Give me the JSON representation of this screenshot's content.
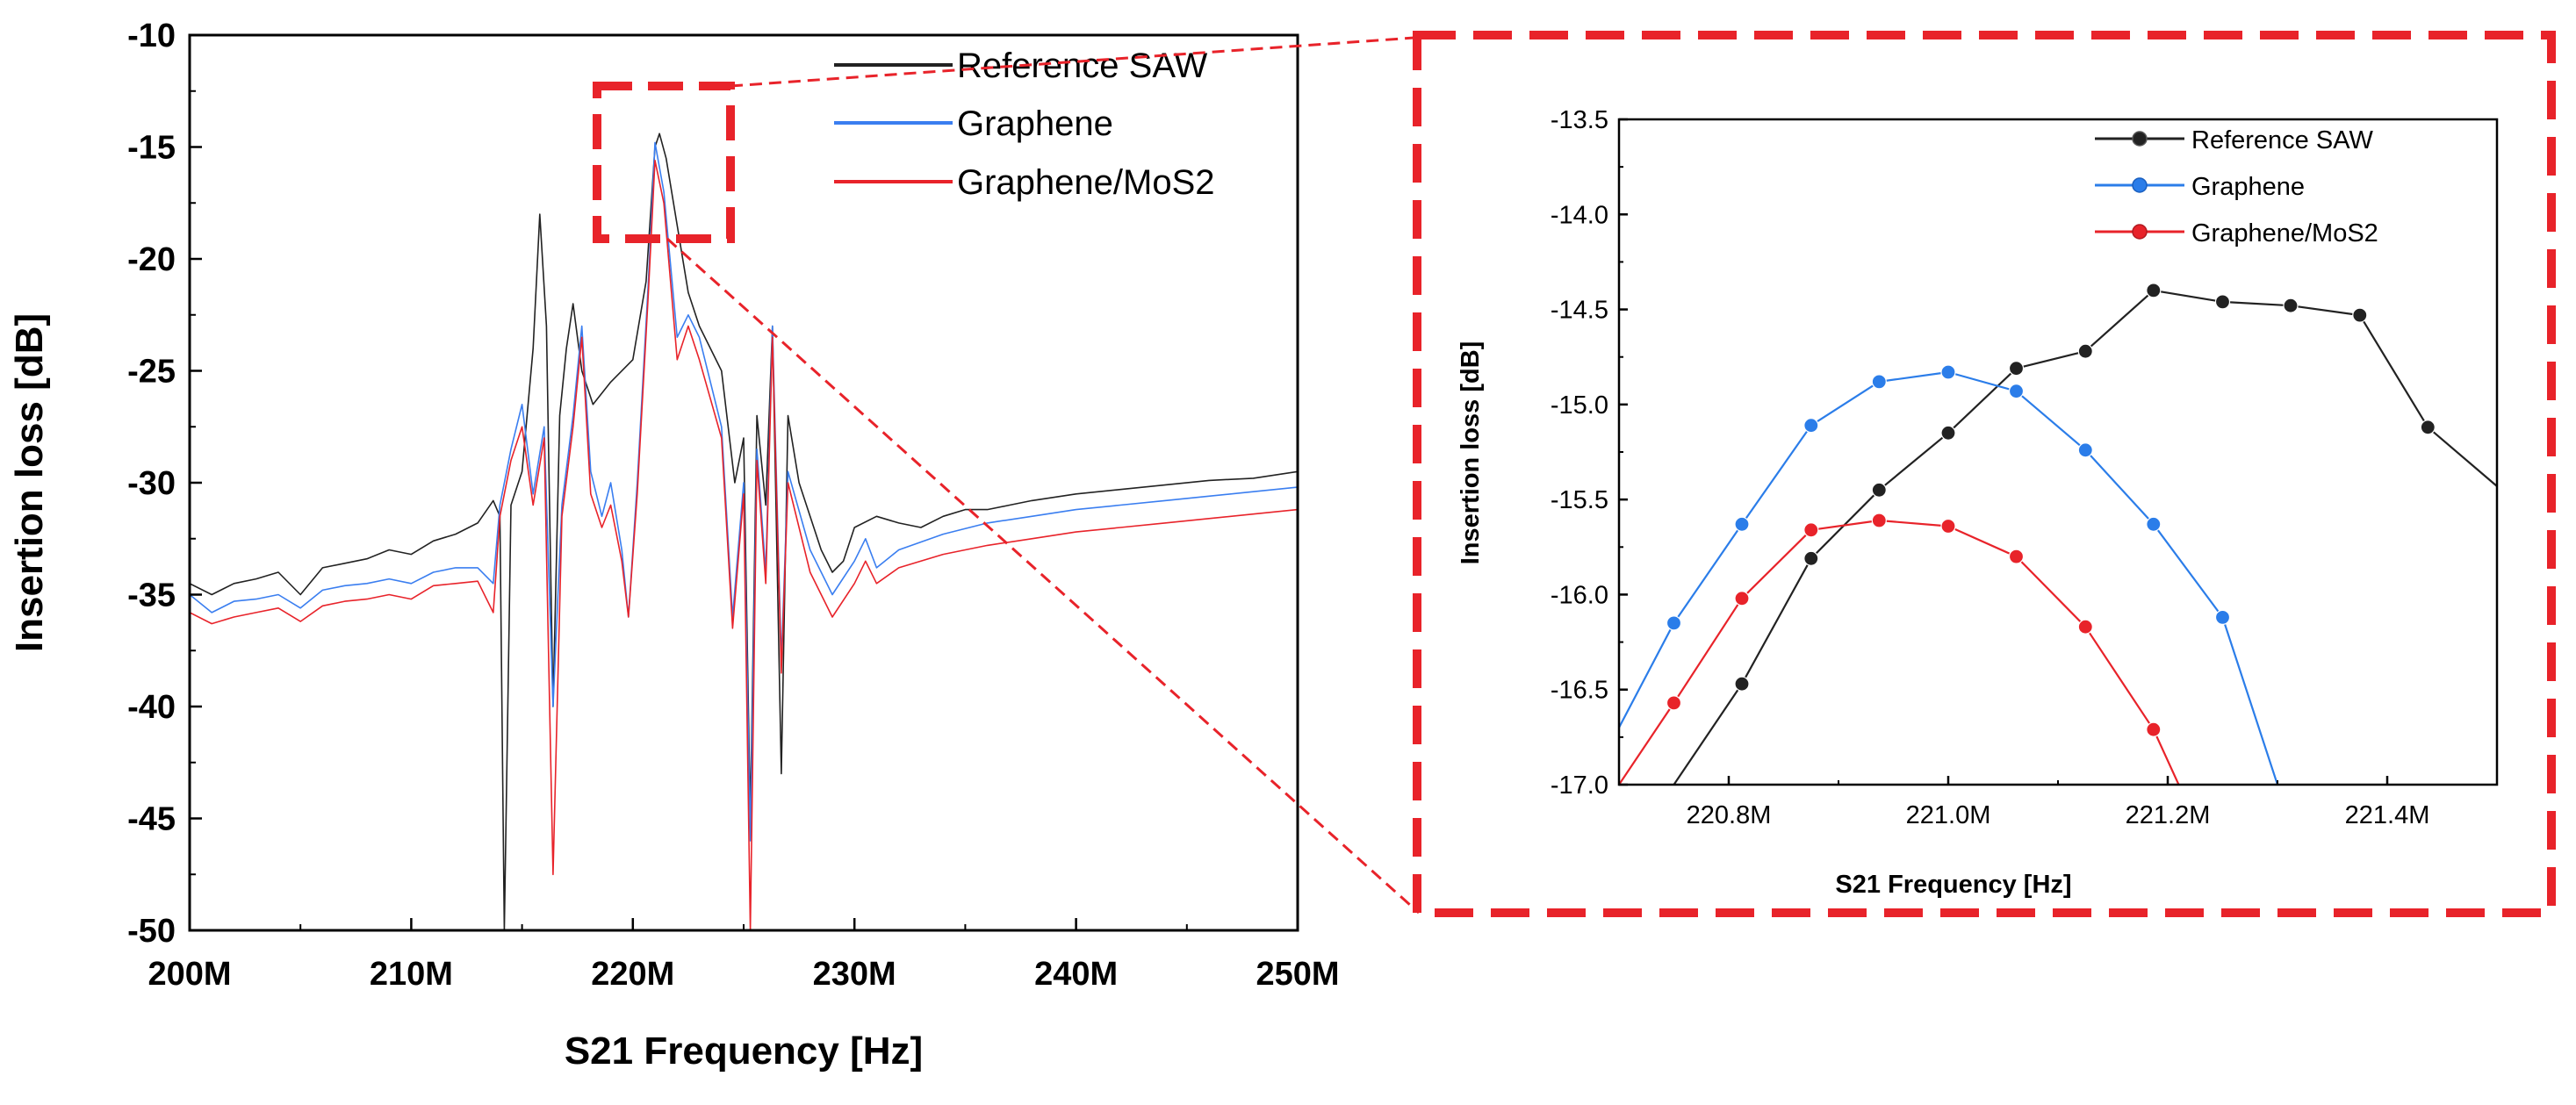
{
  "chart_data": [
    {
      "id": "main",
      "type": "line",
      "title": "",
      "xlabel": "S21 Frequency [Hz]",
      "ylabel": "Insertion loss [dB]",
      "xlim": [
        200,
        250
      ],
      "ylim": [
        -50,
        -10
      ],
      "x_unit": "MHz",
      "x_ticks": [
        200,
        210,
        220,
        230,
        240,
        250
      ],
      "x_tick_labels": [
        "200M",
        "210M",
        "220M",
        "230M",
        "240M",
        "250M"
      ],
      "y_ticks": [
        -50,
        -45,
        -40,
        -35,
        -30,
        -25,
        -20,
        -15,
        -10
      ],
      "y_tick_labels": [
        "-50",
        "-45",
        "-40",
        "-35",
        "-30",
        "-25",
        "-20",
        "-15",
        "-10"
      ],
      "legend_position": "top-right",
      "series": [
        {
          "name": "Reference SAW",
          "color": "#222222",
          "points": [
            [
              200,
              -34.5
            ],
            [
              201,
              -35.0
            ],
            [
              202,
              -34.5
            ],
            [
              203,
              -34.3
            ],
            [
              204,
              -34.0
            ],
            [
              205,
              -35.0
            ],
            [
              206,
              -33.8
            ],
            [
              207,
              -33.6
            ],
            [
              208,
              -33.4
            ],
            [
              209,
              -33.0
            ],
            [
              210,
              -33.2
            ],
            [
              211,
              -32.6
            ],
            [
              212,
              -32.3
            ],
            [
              213,
              -31.8
            ],
            [
              213.7,
              -30.8
            ],
            [
              214,
              -31.5
            ],
            [
              214.2,
              -50.0
            ],
            [
              214.5,
              -31.0
            ],
            [
              215,
              -29.5
            ],
            [
              215.5,
              -24.0
            ],
            [
              215.8,
              -18.0
            ],
            [
              216.1,
              -23.0
            ],
            [
              216.4,
              -40.0
            ],
            [
              216.7,
              -27.0
            ],
            [
              217,
              -24.0
            ],
            [
              217.3,
              -22.0
            ],
            [
              217.7,
              -25.0
            ],
            [
              218.2,
              -26.5
            ],
            [
              219,
              -25.5
            ],
            [
              220,
              -24.5
            ],
            [
              220.6,
              -21.0
            ],
            [
              221.0,
              -15.0
            ],
            [
              221.2,
              -14.4
            ],
            [
              221.5,
              -15.5
            ],
            [
              222,
              -18.5
            ],
            [
              222.5,
              -21.5
            ],
            [
              223,
              -23.0
            ],
            [
              224,
              -25.0
            ],
            [
              224.6,
              -30.0
            ],
            [
              225.0,
              -28.0
            ],
            [
              225.3,
              -45.0
            ],
            [
              225.6,
              -27.0
            ],
            [
              226.0,
              -31.0
            ],
            [
              226.3,
              -23.0
            ],
            [
              226.7,
              -43.0
            ],
            [
              227,
              -27.0
            ],
            [
              227.5,
              -30.0
            ],
            [
              228,
              -31.5
            ],
            [
              228.5,
              -33.0
            ],
            [
              229,
              -34.0
            ],
            [
              229.5,
              -33.5
            ],
            [
              230,
              -32.0
            ],
            [
              231,
              -31.5
            ],
            [
              232,
              -31.8
            ],
            [
              233,
              -32.0
            ],
            [
              234,
              -31.5
            ],
            [
              235,
              -31.2
            ],
            [
              236,
              -31.2
            ],
            [
              237,
              -31.0
            ],
            [
              238,
              -30.8
            ],
            [
              240,
              -30.5
            ],
            [
              242,
              -30.3
            ],
            [
              244,
              -30.1
            ],
            [
              246,
              -29.9
            ],
            [
              248,
              -29.8
            ],
            [
              250,
              -29.5
            ]
          ]
        },
        {
          "name": "Graphene",
          "color": "#3a7ef0",
          "points": [
            [
              200,
              -35.0
            ],
            [
              201,
              -35.8
            ],
            [
              202,
              -35.3
            ],
            [
              203,
              -35.2
            ],
            [
              204,
              -35.0
            ],
            [
              205,
              -35.6
            ],
            [
              206,
              -34.8
            ],
            [
              207,
              -34.6
            ],
            [
              208,
              -34.5
            ],
            [
              209,
              -34.3
            ],
            [
              210,
              -34.5
            ],
            [
              211,
              -34.0
            ],
            [
              212,
              -33.8
            ],
            [
              213,
              -33.8
            ],
            [
              213.7,
              -34.5
            ],
            [
              214,
              -31.0
            ],
            [
              214.5,
              -28.5
            ],
            [
              215,
              -26.5
            ],
            [
              215.5,
              -30.5
            ],
            [
              216.0,
              -27.5
            ],
            [
              216.4,
              -40.0
            ],
            [
              216.8,
              -31.0
            ],
            [
              217.3,
              -27.0
            ],
            [
              217.7,
              -23.0
            ],
            [
              218.1,
              -29.5
            ],
            [
              218.6,
              -31.5
            ],
            [
              219.0,
              -30.0
            ],
            [
              219.5,
              -33.0
            ],
            [
              219.8,
              -36.0
            ],
            [
              220.2,
              -30.0
            ],
            [
              220.7,
              -21.0
            ],
            [
              221.0,
              -14.8
            ],
            [
              221.4,
              -17.0
            ],
            [
              222.0,
              -23.5
            ],
            [
              222.5,
              -22.5
            ],
            [
              223,
              -23.5
            ],
            [
              224,
              -27.5
            ],
            [
              224.5,
              -36.0
            ],
            [
              225.0,
              -30.0
            ],
            [
              225.3,
              -46.0
            ],
            [
              225.6,
              -28.5
            ],
            [
              226.0,
              -34.0
            ],
            [
              226.3,
              -23.0
            ],
            [
              226.7,
              -38.0
            ],
            [
              227,
              -29.5
            ],
            [
              228,
              -33.0
            ],
            [
              229,
              -35.0
            ],
            [
              230,
              -33.5
            ],
            [
              230.5,
              -32.5
            ],
            [
              231,
              -33.8
            ],
            [
              232,
              -33.0
            ],
            [
              234,
              -32.3
            ],
            [
              236,
              -31.8
            ],
            [
              238,
              -31.5
            ],
            [
              240,
              -31.2
            ],
            [
              242,
              -31.0
            ],
            [
              244,
              -30.8
            ],
            [
              246,
              -30.6
            ],
            [
              248,
              -30.4
            ],
            [
              250,
              -30.2
            ]
          ]
        },
        {
          "name": "Graphene/MoS2",
          "color": "#e8232a",
          "points": [
            [
              200,
              -35.8
            ],
            [
              201,
              -36.3
            ],
            [
              202,
              -36.0
            ],
            [
              203,
              -35.8
            ],
            [
              204,
              -35.6
            ],
            [
              205,
              -36.2
            ],
            [
              206,
              -35.5
            ],
            [
              207,
              -35.3
            ],
            [
              208,
              -35.2
            ],
            [
              209,
              -35.0
            ],
            [
              210,
              -35.2
            ],
            [
              211,
              -34.6
            ],
            [
              212,
              -34.5
            ],
            [
              213,
              -34.4
            ],
            [
              213.7,
              -35.8
            ],
            [
              214,
              -31.5
            ],
            [
              214.5,
              -29.0
            ],
            [
              215,
              -27.5
            ],
            [
              215.5,
              -31.0
            ],
            [
              216.0,
              -28.0
            ],
            [
              216.4,
              -47.5
            ],
            [
              216.8,
              -31.5
            ],
            [
              217.3,
              -27.5
            ],
            [
              217.7,
              -23.5
            ],
            [
              218.1,
              -30.5
            ],
            [
              218.6,
              -32.0
            ],
            [
              219.0,
              -31.0
            ],
            [
              219.5,
              -33.5
            ],
            [
              219.8,
              -36.0
            ],
            [
              220.2,
              -30.5
            ],
            [
              220.7,
              -21.5
            ],
            [
              221.0,
              -15.6
            ],
            [
              221.4,
              -17.5
            ],
            [
              222.0,
              -24.5
            ],
            [
              222.5,
              -23.0
            ],
            [
              223,
              -24.5
            ],
            [
              224,
              -28.0
            ],
            [
              224.5,
              -36.5
            ],
            [
              225.0,
              -30.5
            ],
            [
              225.3,
              -50.0
            ],
            [
              225.6,
              -29.0
            ],
            [
              226.0,
              -34.5
            ],
            [
              226.3,
              -23.5
            ],
            [
              226.7,
              -38.5
            ],
            [
              227,
              -30.0
            ],
            [
              228,
              -34.0
            ],
            [
              229,
              -36.0
            ],
            [
              230,
              -34.5
            ],
            [
              230.5,
              -33.5
            ],
            [
              231,
              -34.5
            ],
            [
              232,
              -33.8
            ],
            [
              234,
              -33.2
            ],
            [
              236,
              -32.8
            ],
            [
              238,
              -32.5
            ],
            [
              240,
              -32.2
            ],
            [
              242,
              -32.0
            ],
            [
              244,
              -31.8
            ],
            [
              246,
              -31.6
            ],
            [
              248,
              -31.4
            ],
            [
              250,
              -31.2
            ]
          ]
        }
      ]
    },
    {
      "id": "zoom",
      "type": "line",
      "title": "",
      "xlabel": "S21 Frequency [Hz]",
      "ylabel": "Insertion loss [dB]",
      "xlim": [
        220.7,
        221.5
      ],
      "ylim": [
        -17.0,
        -13.5
      ],
      "x_unit": "MHz",
      "x_ticks": [
        220.8,
        221.0,
        221.2,
        221.4
      ],
      "x_tick_labels": [
        "220.8M",
        "221.0M",
        "221.2M",
        "221.4M"
      ],
      "y_ticks": [
        -17.0,
        -16.5,
        -16.0,
        -15.5,
        -15.0,
        -14.5,
        -14.0,
        -13.5
      ],
      "y_tick_labels": [
        "-17.0",
        "-16.5",
        "-16.0",
        "-15.5",
        "-15.0",
        "-14.5",
        "-14.0",
        "-13.5"
      ],
      "legend_position": "top-right",
      "series": [
        {
          "name": "Reference SAW",
          "color": "#222222",
          "points": [
            [
              220.75,
              -17.0
            ],
            [
              220.812,
              -16.47
            ],
            [
              220.875,
              -15.81
            ],
            [
              220.937,
              -15.45
            ],
            [
              221.0,
              -15.15
            ],
            [
              221.062,
              -14.81
            ],
            [
              221.125,
              -14.72
            ],
            [
              221.187,
              -14.4
            ],
            [
              221.25,
              -14.46
            ],
            [
              221.312,
              -14.48
            ],
            [
              221.375,
              -14.53
            ],
            [
              221.437,
              -15.12
            ],
            [
              221.5,
              -15.43
            ]
          ],
          "markers": [
            [
              220.812,
              -16.47
            ],
            [
              220.875,
              -15.81
            ],
            [
              220.937,
              -15.45
            ],
            [
              221.0,
              -15.15
            ],
            [
              221.062,
              -14.81
            ],
            [
              221.125,
              -14.72
            ],
            [
              221.187,
              -14.4
            ],
            [
              221.25,
              -14.46
            ],
            [
              221.312,
              -14.48
            ],
            [
              221.375,
              -14.53
            ],
            [
              221.437,
              -15.12
            ]
          ]
        },
        {
          "name": "Graphene",
          "color": "#2b7de9",
          "points": [
            [
              220.7,
              -16.7
            ],
            [
              220.75,
              -16.15
            ],
            [
              220.812,
              -15.63
            ],
            [
              220.875,
              -15.11
            ],
            [
              220.937,
              -14.88
            ],
            [
              221.0,
              -14.83
            ],
            [
              221.062,
              -14.93
            ],
            [
              221.125,
              -15.24
            ],
            [
              221.187,
              -15.63
            ],
            [
              221.25,
              -16.12
            ],
            [
              221.3,
              -17.0
            ]
          ],
          "markers": [
            [
              220.75,
              -16.15
            ],
            [
              220.812,
              -15.63
            ],
            [
              220.875,
              -15.11
            ],
            [
              220.937,
              -14.88
            ],
            [
              221.0,
              -14.83
            ],
            [
              221.062,
              -14.93
            ],
            [
              221.125,
              -15.24
            ],
            [
              221.187,
              -15.63
            ],
            [
              221.25,
              -16.12
            ]
          ]
        },
        {
          "name": "Graphene/MoS2",
          "color": "#e8232a",
          "points": [
            [
              220.7,
              -17.0
            ],
            [
              220.75,
              -16.57
            ],
            [
              220.812,
              -16.02
            ],
            [
              220.875,
              -15.66
            ],
            [
              220.937,
              -15.61
            ],
            [
              221.0,
              -15.64
            ],
            [
              221.062,
              -15.8
            ],
            [
              221.125,
              -16.17
            ],
            [
              221.187,
              -16.71
            ],
            [
              221.21,
              -17.0
            ]
          ],
          "markers": [
            [
              220.75,
              -16.57
            ],
            [
              220.812,
              -16.02
            ],
            [
              220.875,
              -15.66
            ],
            [
              220.937,
              -15.61
            ],
            [
              221.0,
              -15.64
            ],
            [
              221.062,
              -15.8
            ],
            [
              221.125,
              -16.17
            ],
            [
              221.187,
              -16.71
            ]
          ]
        }
      ]
    }
  ],
  "colors": {
    "highlight": "#e8232a"
  }
}
